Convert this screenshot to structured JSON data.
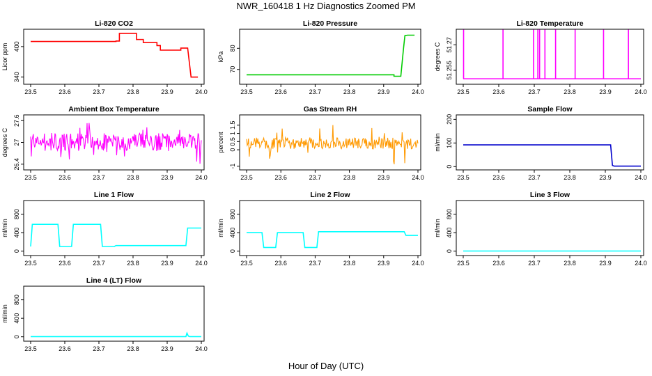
{
  "title": "NWR_160418  1 Hz Diagnostics Zoomed PM",
  "xlabel": "Hour of Day (UTC)",
  "chart_data": [
    {
      "id": "co2",
      "type": "line",
      "title": "Li-820 CO2",
      "ylabel": "Licor ppm",
      "color": "#ff0000",
      "xlim": [
        23.5,
        24.0
      ],
      "ylim": [
        330,
        430
      ],
      "xticks": [
        "23.5",
        "23.6",
        "23.7",
        "23.8",
        "23.9",
        "24.0"
      ],
      "yticks": [
        340,
        400
      ],
      "x": [
        23.5,
        23.75,
        23.75,
        23.76,
        23.76,
        23.81,
        23.81,
        23.83,
        23.83,
        23.87,
        23.87,
        23.88,
        23.88,
        23.94,
        23.94,
        23.96,
        23.97,
        23.99
      ],
      "y": [
        410,
        410,
        411,
        411,
        426,
        426,
        414,
        414,
        408,
        408,
        402,
        402,
        393,
        393,
        397,
        397,
        340,
        340
      ]
    },
    {
      "id": "pressure",
      "type": "line",
      "title": "Li-820 Pressure",
      "ylabel": "kPa",
      "color": "#00cc00",
      "xlim": [
        23.5,
        24.0
      ],
      "ylim": [
        64,
        88
      ],
      "xticks": [
        "23.5",
        "23.6",
        "23.7",
        "23.8",
        "23.9",
        "24.0"
      ],
      "yticks": [
        70,
        80
      ],
      "x": [
        23.5,
        23.93,
        23.93,
        23.95,
        23.958,
        23.962,
        23.97,
        23.99
      ],
      "y": [
        67.5,
        67.5,
        66.8,
        66.8,
        80,
        86,
        86.2,
        86.2
      ]
    },
    {
      "id": "temperature",
      "type": "spikes",
      "title": "Li-820 Temperature",
      "ylabel": "degrees C",
      "color": "#ff00ff",
      "xlim": [
        23.5,
        24.0
      ],
      "ylim": [
        51.248,
        51.278
      ],
      "xticks": [
        "23.5",
        "23.6",
        "23.7",
        "23.8",
        "23.9",
        "24.0"
      ],
      "yticks": [
        51.255,
        51.27
      ],
      "baseline": 51.25,
      "peak": 51.279,
      "spikes": [
        23.501,
        23.612,
        23.698,
        23.71,
        23.715,
        23.73,
        23.76,
        23.815,
        23.895,
        23.965
      ]
    },
    {
      "id": "box_temp",
      "type": "noise",
      "title": "Ambient Box Temperature",
      "ylabel": "degrees C",
      "color": "#ff00ff",
      "xlim": [
        23.5,
        24.0
      ],
      "ylim": [
        26.3,
        27.7
      ],
      "xticks": [
        "23.5",
        "23.6",
        "23.7",
        "23.8",
        "23.9",
        "24.0"
      ],
      "yticks": [
        26.4,
        27.0,
        27.6
      ],
      "mean": 27.0,
      "amplitude": 0.25,
      "spike_max": 27.6,
      "spike_min": 26.4
    },
    {
      "id": "gas_rh",
      "type": "noise",
      "title": "Gas Stream RH",
      "ylabel": "percent",
      "color": "#ff9900",
      "xlim": [
        23.5,
        24.0
      ],
      "ylim": [
        -1.1,
        2.0
      ],
      "xticks": [
        "23.5",
        "23.6",
        "23.7",
        "23.8",
        "23.9",
        "24.0"
      ],
      "yticks": [
        -1.0,
        0.0,
        0.5,
        1.0,
        1.5
      ],
      "mean": 0.4,
      "amplitude": 0.35,
      "spike_max": 1.7,
      "spike_min": -0.9
    },
    {
      "id": "sample_flow",
      "type": "line",
      "title": "Sample Flow",
      "ylabel": "ml/min",
      "color": "#0000cc",
      "xlim": [
        23.5,
        24.0
      ],
      "ylim": [
        -5,
        210
      ],
      "xticks": [
        "23.5",
        "23.6",
        "23.7",
        "23.8",
        "23.9",
        "24.0"
      ],
      "yticks": [
        0,
        100,
        200
      ],
      "x": [
        23.5,
        23.915,
        23.92,
        23.925,
        24.0
      ],
      "y": [
        92,
        92,
        5,
        2,
        2
      ]
    },
    {
      "id": "line1",
      "type": "line",
      "title": "Line 1 Flow",
      "ylabel": "ml/min",
      "color": "#00ffff",
      "xlim": [
        23.5,
        24.0
      ],
      "ylim": [
        -50,
        1050
      ],
      "xticks": [
        "23.5",
        "23.6",
        "23.7",
        "23.8",
        "23.9",
        "24.0"
      ],
      "yticks": [
        0,
        400,
        800
      ],
      "x": [
        23.5,
        23.505,
        23.58,
        23.585,
        23.62,
        23.625,
        23.705,
        23.71,
        23.745,
        23.75,
        23.955,
        23.96,
        24.0
      ],
      "y": [
        100,
        580,
        580,
        100,
        100,
        580,
        580,
        100,
        100,
        120,
        120,
        500,
        500
      ]
    },
    {
      "id": "line2",
      "type": "line",
      "title": "Line 2 Flow",
      "ylabel": "ml/min",
      "color": "#00ffff",
      "xlim": [
        23.5,
        24.0
      ],
      "ylim": [
        -50,
        1050
      ],
      "xticks": [
        "23.5",
        "23.6",
        "23.7",
        "23.8",
        "23.9",
        "24.0"
      ],
      "yticks": [
        0,
        400,
        800
      ],
      "x": [
        23.5,
        23.545,
        23.55,
        23.585,
        23.59,
        23.665,
        23.67,
        23.705,
        23.71,
        23.96,
        23.965,
        24.0
      ],
      "y": [
        400,
        400,
        80,
        80,
        400,
        400,
        80,
        80,
        420,
        420,
        340,
        340
      ]
    },
    {
      "id": "line3",
      "type": "line",
      "title": "Line 3 Flow",
      "ylabel": "ml/min",
      "color": "#00ffff",
      "xlim": [
        23.5,
        24.0
      ],
      "ylim": [
        -50,
        1050
      ],
      "xticks": [
        "23.5",
        "23.6",
        "23.7",
        "23.8",
        "23.9",
        "24.0"
      ],
      "yticks": [
        0,
        400,
        800
      ],
      "x": [
        23.5,
        24.0
      ],
      "y": [
        2,
        2
      ]
    },
    {
      "id": "line4",
      "type": "line",
      "title": "Line 4 (LT) Flow",
      "ylabel": "ml/min",
      "color": "#00ffff",
      "xlim": [
        23.5,
        24.0
      ],
      "ylim": [
        -50,
        1050
      ],
      "xticks": [
        "23.5",
        "23.6",
        "23.7",
        "23.8",
        "23.9",
        "24.0"
      ],
      "yticks": [
        0,
        400,
        800
      ],
      "x": [
        23.5,
        23.955,
        23.958,
        23.962,
        23.966,
        24.0
      ],
      "y": [
        5,
        5,
        80,
        15,
        5,
        5
      ]
    }
  ]
}
